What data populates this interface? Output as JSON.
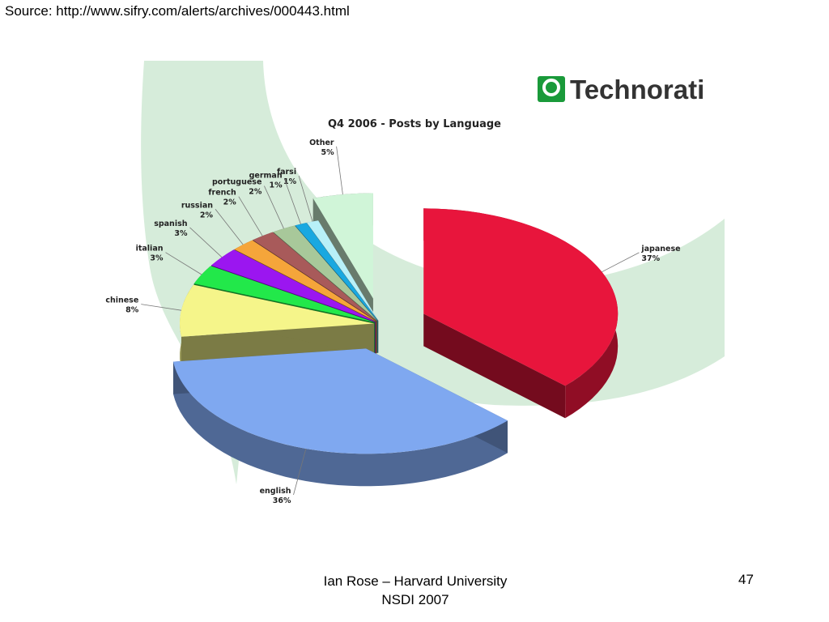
{
  "slide": {
    "source_text": "Source: http://www.sifry.com/alerts/archives/000443.html",
    "footer_line1": "Ian Rose – Harvard University",
    "footer_line2": "NSDI 2007",
    "page_number": "47"
  },
  "logo": {
    "text": "Technorati",
    "color": "#1a9a3a"
  },
  "chart_data": {
    "type": "pie",
    "title": "Q4 2006 - Posts by Language",
    "labels_format": "name-and-percent",
    "slices": [
      {
        "name": "japanese",
        "value": 37,
        "label": "37%",
        "color": "#e8153c",
        "exploded": true
      },
      {
        "name": "english",
        "value": 36,
        "label": "36%",
        "color": "#7fa8f0",
        "exploded": true
      },
      {
        "name": "chinese",
        "value": 8,
        "label": "8%",
        "color": "#f5f58a"
      },
      {
        "name": "italian",
        "value": 3,
        "label": "3%",
        "color": "#22e84a"
      },
      {
        "name": "spanish",
        "value": 3,
        "label": "3%",
        "color": "#9b16f0"
      },
      {
        "name": "russian",
        "value": 2,
        "label": "2%",
        "color": "#f5a53a"
      },
      {
        "name": "french",
        "value": 2,
        "label": "2%",
        "color": "#a85a5a"
      },
      {
        "name": "portuguese",
        "value": 2,
        "label": "2%",
        "color": "#a8c89a"
      },
      {
        "name": "german",
        "value": 1,
        "label": "1%",
        "color": "#1aa8e0"
      },
      {
        "name": "farsi",
        "value": 1,
        "label": "1%",
        "color": "#b8f0f8"
      },
      {
        "name": "Other",
        "value": 5,
        "label": "5%",
        "color": "#d0f5d8",
        "exploded": true
      }
    ]
  }
}
